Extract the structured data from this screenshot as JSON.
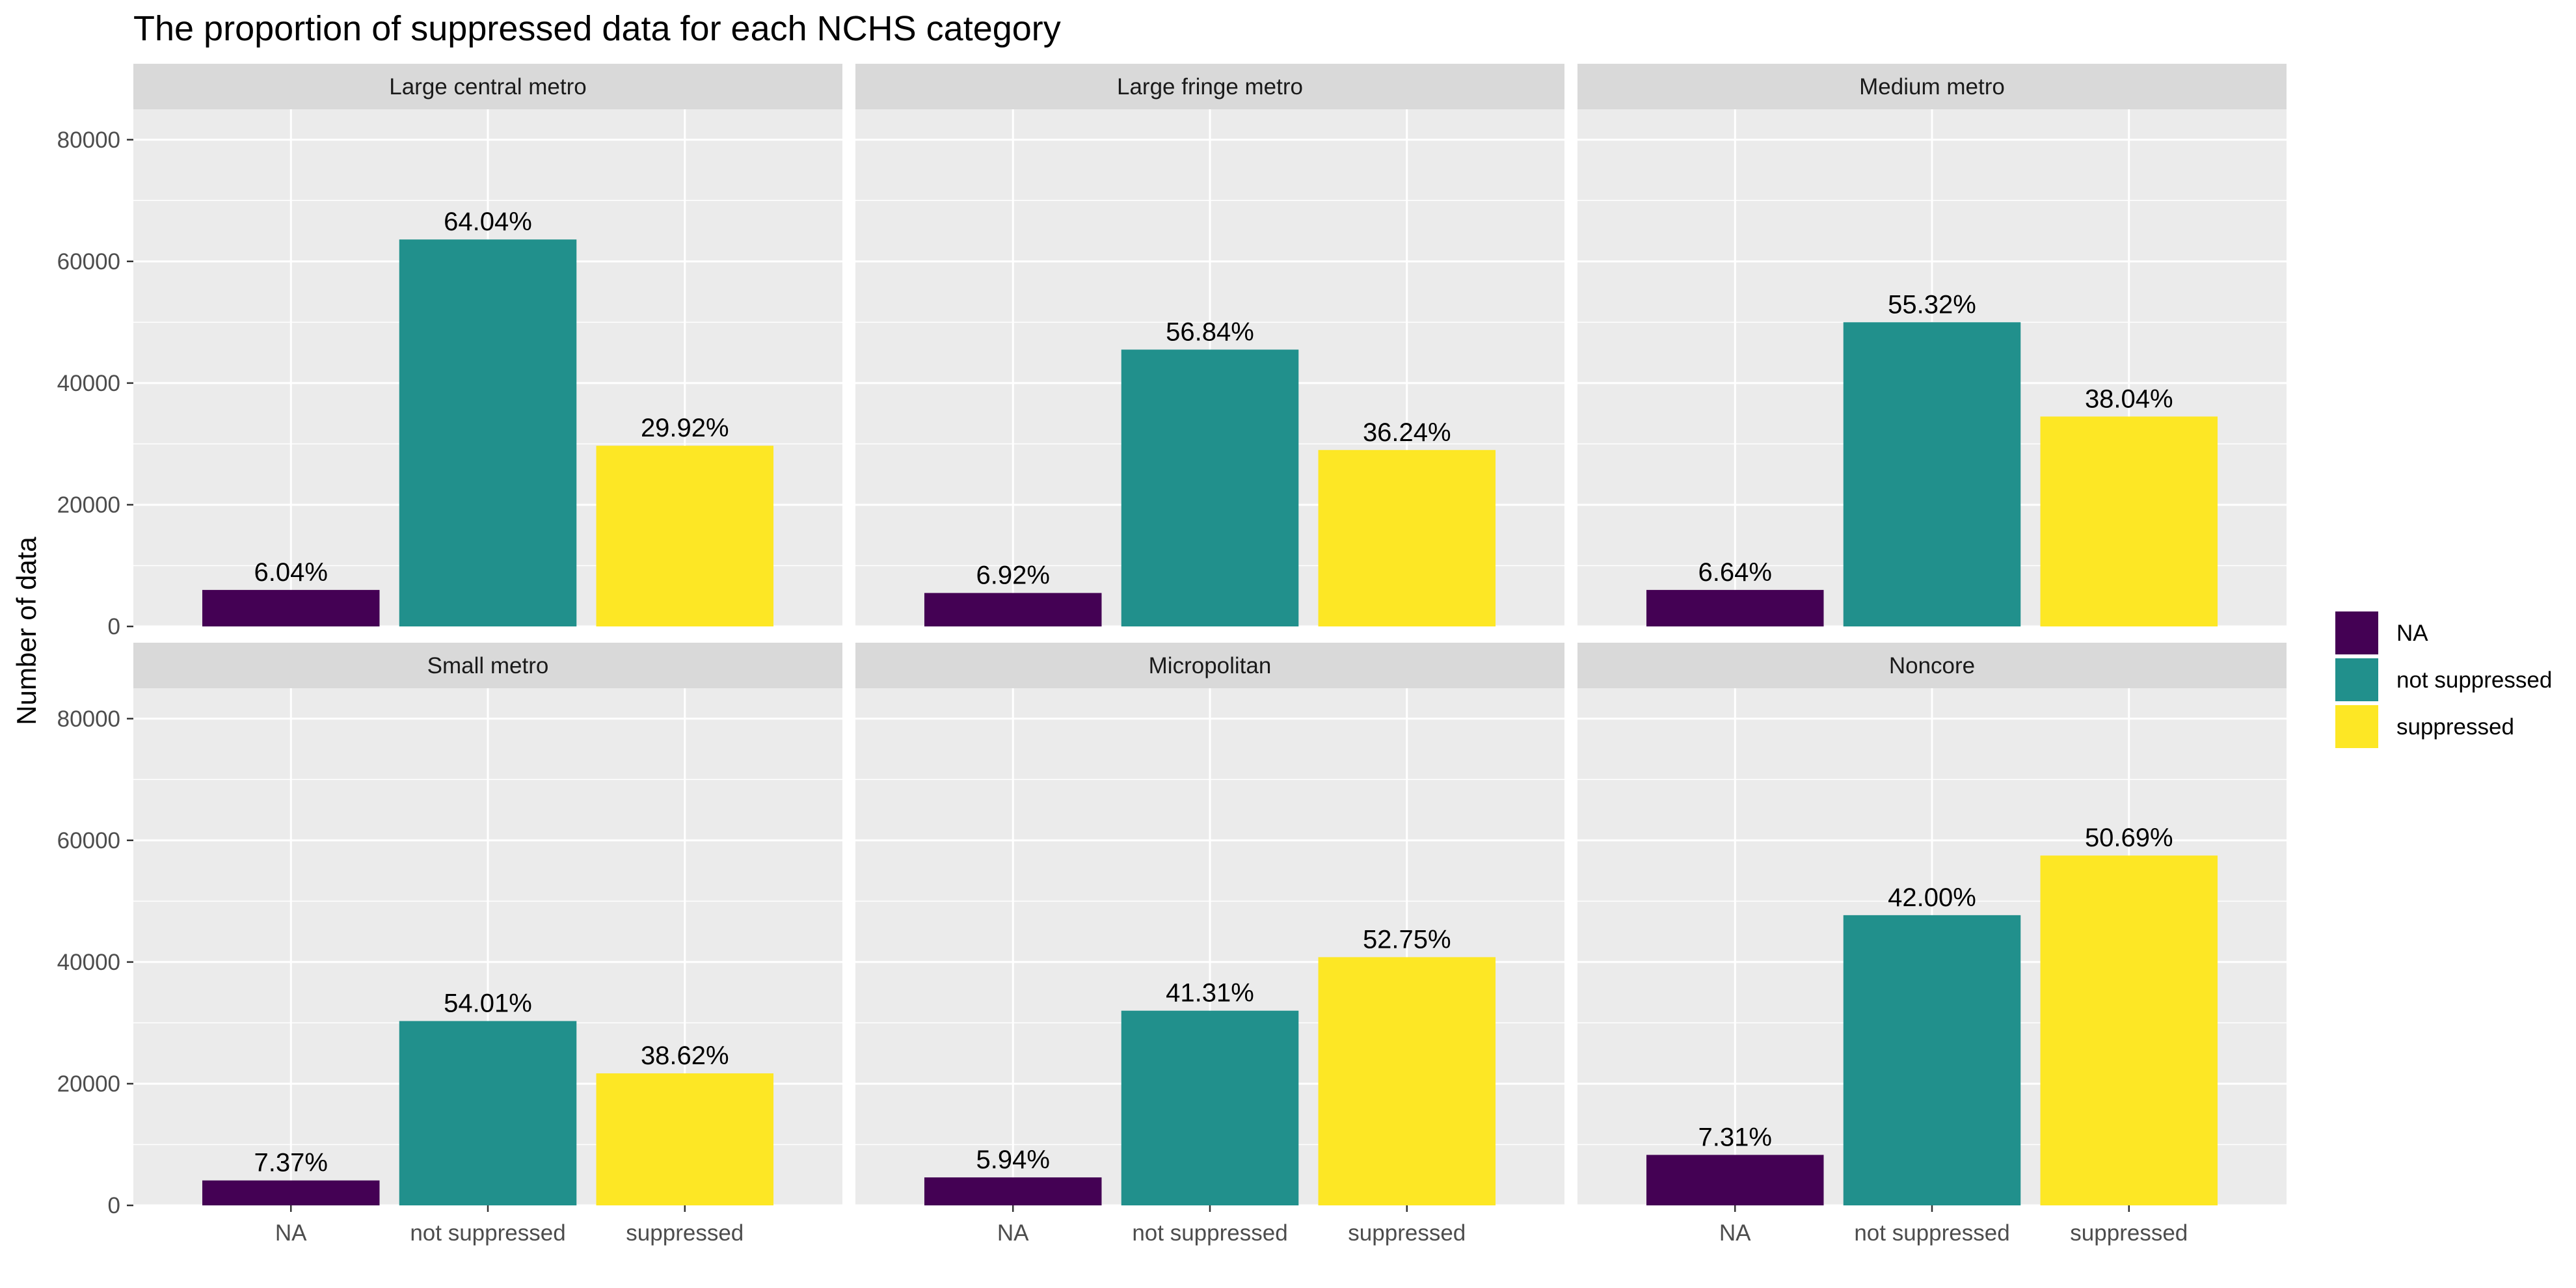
{
  "chart_data": {
    "type": "bar",
    "title": "The proportion of suppressed data for each NCHS category",
    "ylabel": "Number of data",
    "xlabel": "",
    "ylim": [
      0,
      85000
    ],
    "yticks": [
      0,
      20000,
      40000,
      60000,
      80000
    ],
    "categories": [
      "NA",
      "not suppressed",
      "suppressed"
    ],
    "category_colors": [
      "#440154",
      "#21908C",
      "#FDE725"
    ],
    "legend": {
      "position": "right",
      "items": [
        {
          "label": "NA",
          "color": "#440154"
        },
        {
          "label": "not suppressed",
          "color": "#21908C"
        },
        {
          "label": "suppressed",
          "color": "#FDE725"
        }
      ]
    },
    "grid": true,
    "facets": [
      {
        "name": "Large central metro",
        "values": [
          6000,
          63600,
          29700
        ],
        "labels": [
          "6.04%",
          "64.04%",
          "29.92%"
        ]
      },
      {
        "name": "Large fringe metro",
        "values": [
          5500,
          45500,
          29000
        ],
        "labels": [
          "6.92%",
          "56.84%",
          "36.24%"
        ]
      },
      {
        "name": "Medium metro",
        "values": [
          6000,
          50000,
          34500
        ],
        "labels": [
          "6.64%",
          "55.32%",
          "38.04%"
        ]
      },
      {
        "name": "Small metro",
        "values": [
          4100,
          30300,
          21700
        ],
        "labels": [
          "7.37%",
          "54.01%",
          "38.62%"
        ]
      },
      {
        "name": "Micropolitan",
        "values": [
          4600,
          32000,
          40800
        ],
        "labels": [
          "5.94%",
          "41.31%",
          "52.75%"
        ]
      },
      {
        "name": "Noncore",
        "values": [
          8300,
          47700,
          57500
        ],
        "labels": [
          "7.31%",
          "42.00%",
          "50.69%"
        ]
      }
    ]
  }
}
